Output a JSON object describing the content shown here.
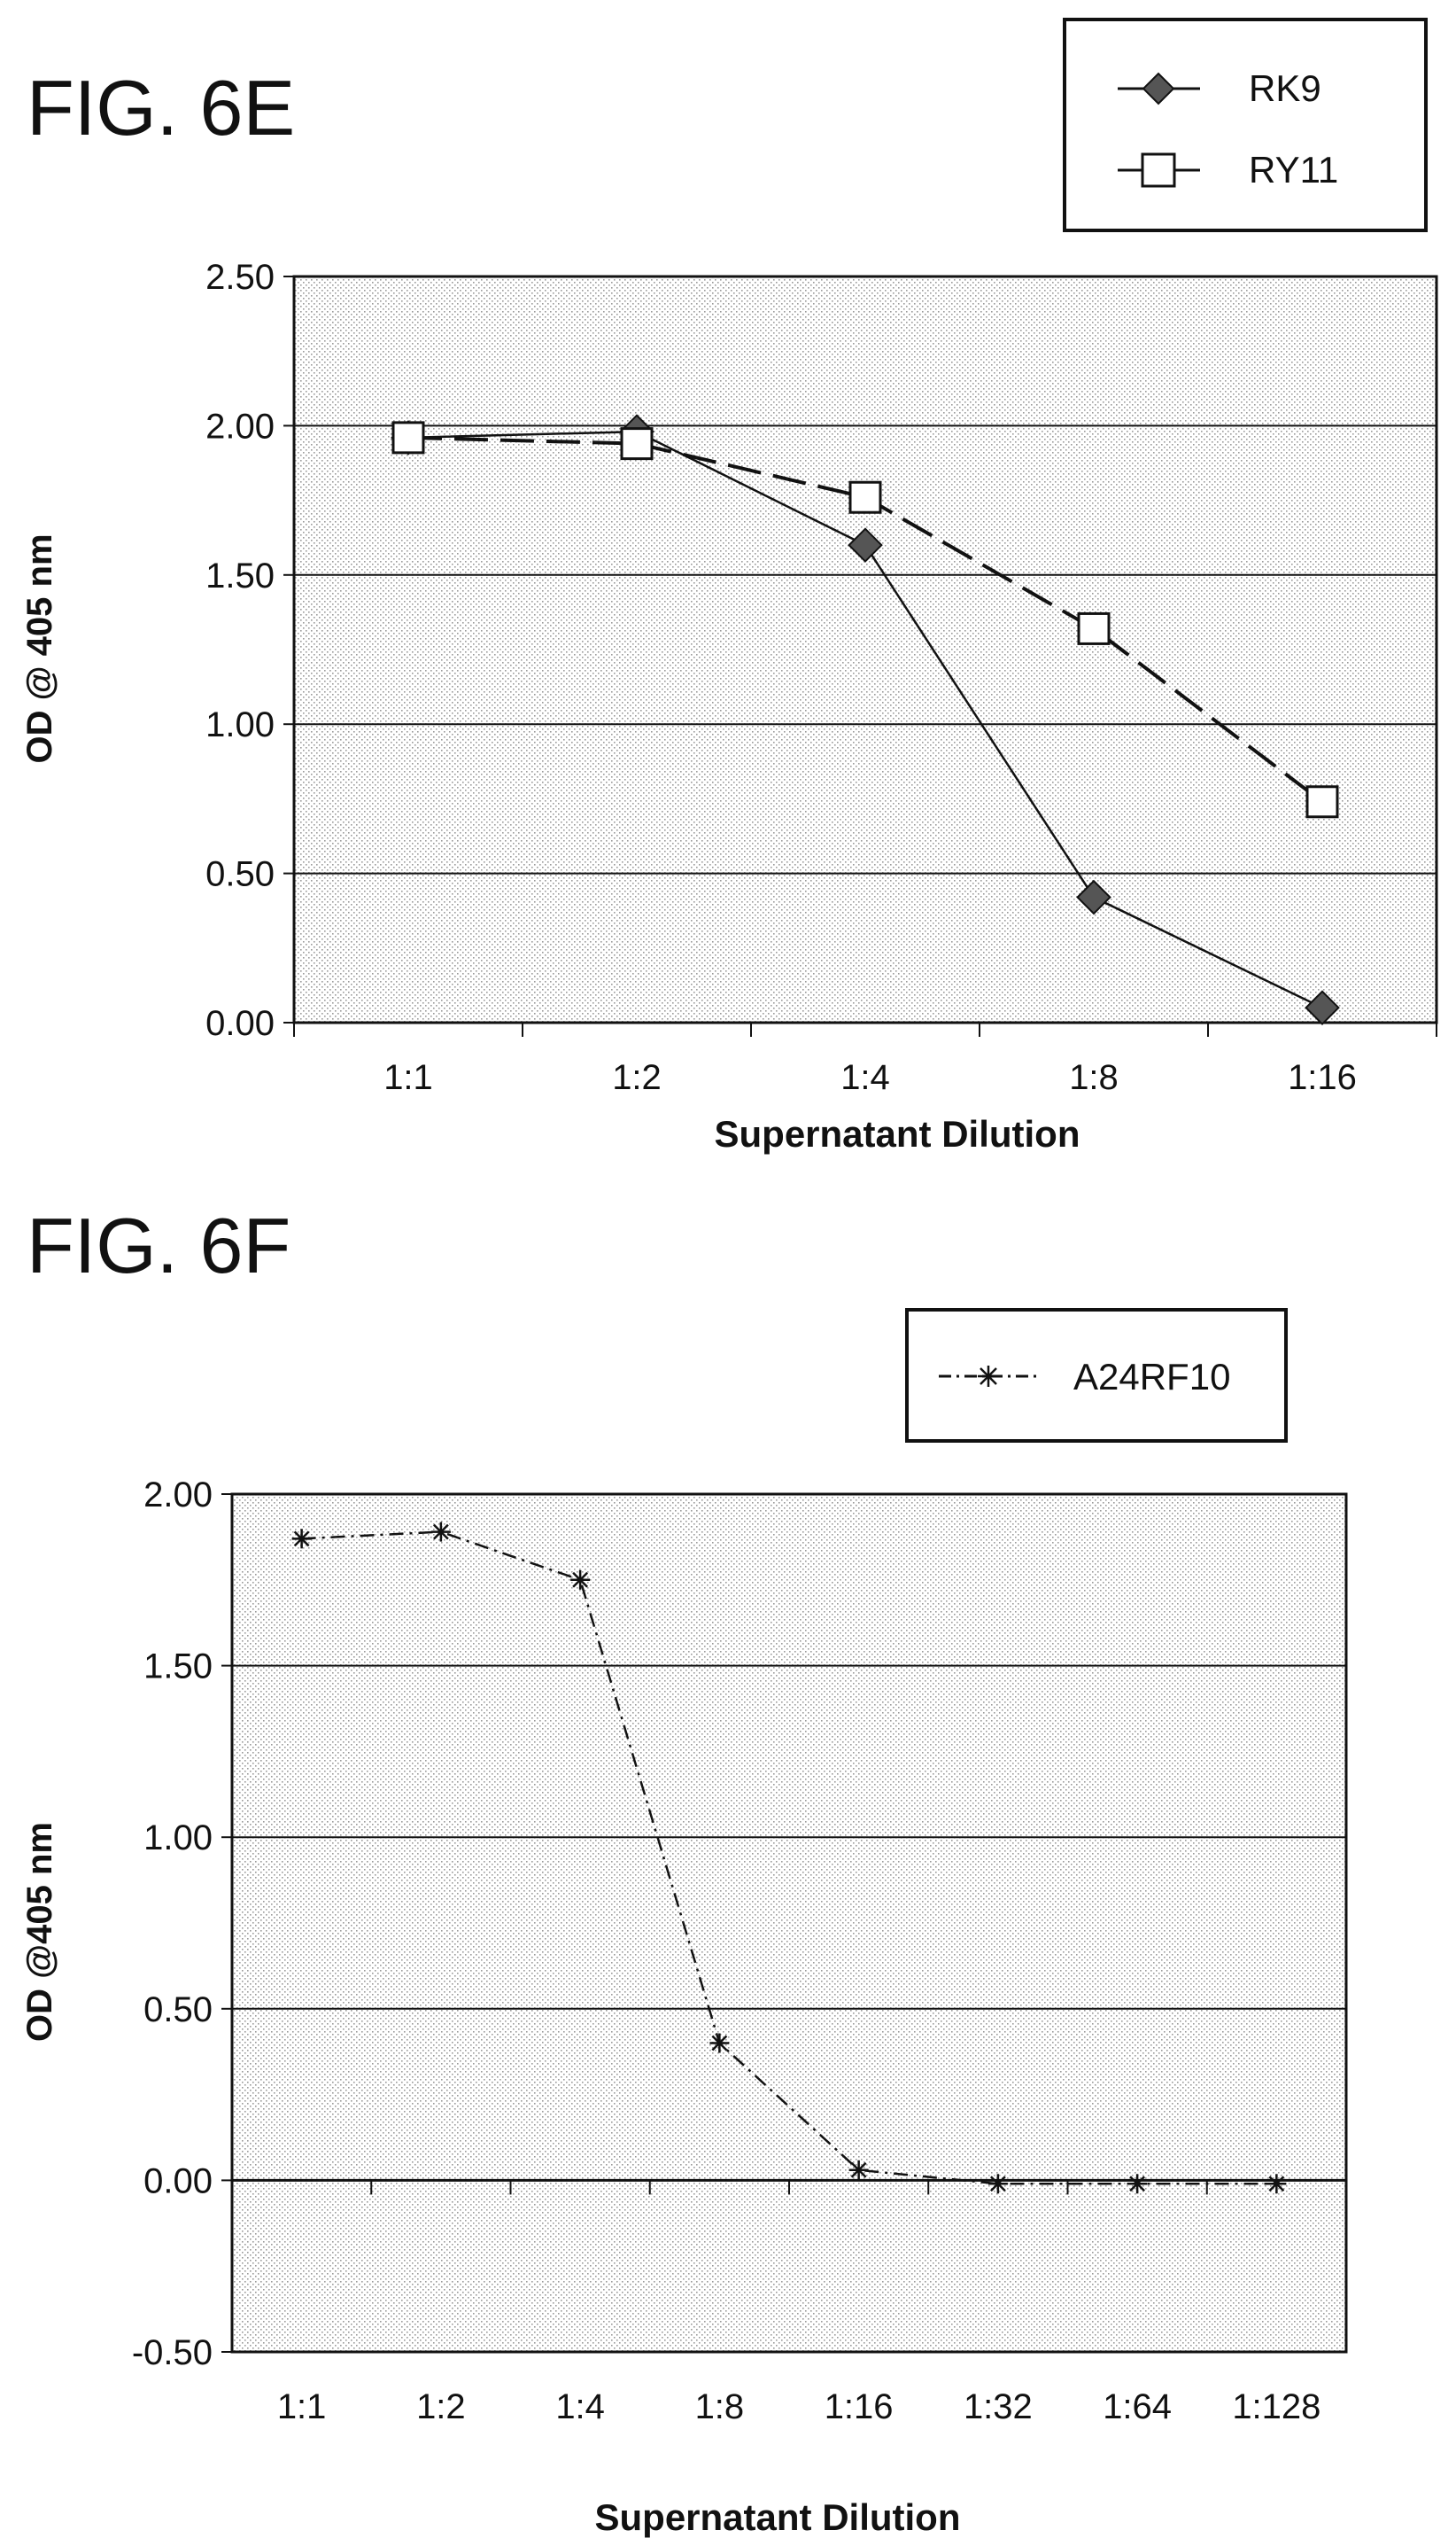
{
  "chart_data": [
    {
      "type": "line",
      "figure_label": "FIG. 6E",
      "title": "",
      "xlabel": "Supernatant Dilution",
      "ylabel": "OD @ 405 nm",
      "categories": [
        "1:1",
        "1:2",
        "1:4",
        "1:8",
        "1:16"
      ],
      "ylim": [
        0,
        2.5
      ],
      "yticks": [
        "0.00",
        "0.50",
        "1.00",
        "1.50",
        "2.00",
        "2.50"
      ],
      "grid": true,
      "legend_position": "top-right",
      "series": [
        {
          "name": "RK9",
          "marker": "diamond",
          "line": "solid",
          "values": [
            1.96,
            1.98,
            1.6,
            0.42,
            0.05
          ]
        },
        {
          "name": "RY11",
          "marker": "square",
          "line": "dashed",
          "values": [
            1.96,
            1.94,
            1.76,
            1.32,
            0.74
          ]
        }
      ]
    },
    {
      "type": "line",
      "figure_label": "FIG. 6F",
      "title": "",
      "xlabel": "Supernatant Dilution",
      "ylabel": "OD @405 nm",
      "categories": [
        "1:1",
        "1:2",
        "1:4",
        "1:8",
        "1:16",
        "1:32",
        "1:64",
        "1:128"
      ],
      "ylim": [
        -0.5,
        2.0
      ],
      "yticks": [
        "-0.50",
        "0.00",
        "0.50",
        "1.00",
        "1.50",
        "2.00"
      ],
      "grid": true,
      "legend_position": "top-right",
      "series": [
        {
          "name": "A24RF10",
          "marker": "asterisk",
          "line": "dash-dot",
          "values": [
            1.87,
            1.89,
            1.75,
            0.4,
            0.03,
            -0.01,
            -0.01,
            -0.01
          ]
        }
      ]
    }
  ]
}
